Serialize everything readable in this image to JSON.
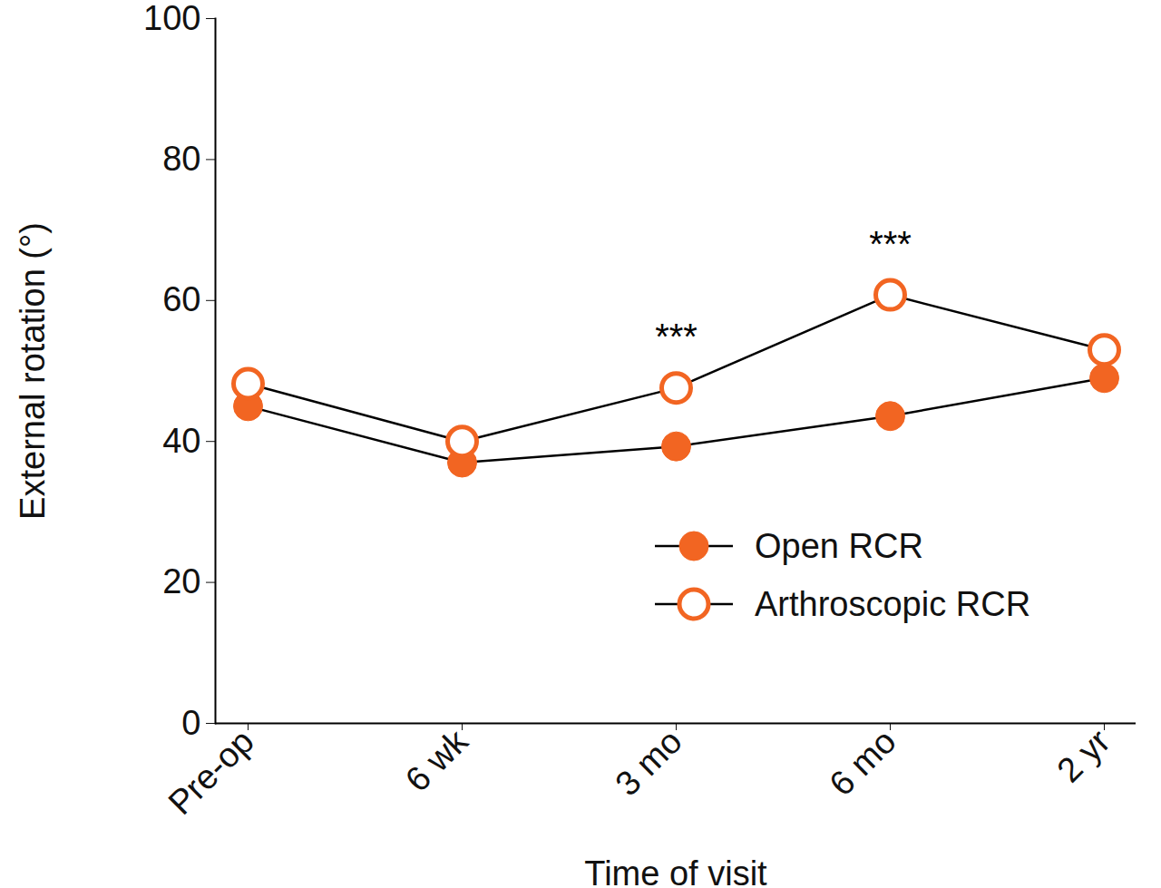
{
  "chart_data": {
    "type": "line",
    "categories": [
      "Pre-op",
      "6 wk",
      "3 mo",
      "6 mo",
      "2 yr"
    ],
    "x_label": "Time of visit",
    "y_label": "External rotation (°)",
    "ylim": [
      0,
      100
    ],
    "yticks": [
      0,
      20,
      40,
      60,
      80,
      100
    ],
    "grid": false,
    "legend": "right",
    "series": [
      {
        "name": "Open RCR",
        "color": "#f26522",
        "marker": "filled",
        "values": [
          45,
          37,
          39.3,
          43.6,
          49
        ]
      },
      {
        "name": "Arthroscopic RCR",
        "color": "#f26522",
        "marker": "open",
        "values": [
          48.2,
          40,
          47.6,
          60.8,
          53
        ]
      }
    ],
    "annotations": [
      {
        "text": "***",
        "x": "3 mo"
      },
      {
        "text": "***",
        "x": "6 mo"
      }
    ]
  }
}
